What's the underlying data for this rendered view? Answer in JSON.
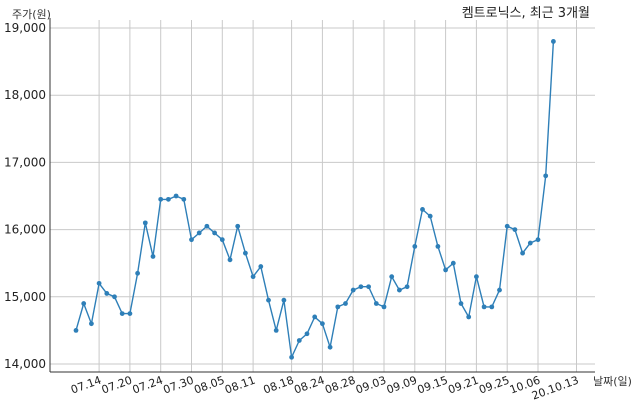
{
  "chart_data": {
    "type": "line",
    "title": "켐트로닉스, 최근 3개월",
    "ylabel": "주가(원)",
    "xlabel": "날짜(일)",
    "ylim": [
      14000,
      19000
    ],
    "yticks": [
      14000,
      15000,
      16000,
      17000,
      18000,
      19000
    ],
    "ytick_labels": [
      "14,000",
      "15,000",
      "16,000",
      "17,000",
      "18,000",
      "19,000"
    ],
    "grid": true,
    "line_color": "#2e7fb8",
    "xtick_labels": [
      "07.14",
      "07.20",
      "07.24",
      "07.30",
      "08.05",
      "08.11",
      "08.18",
      "08.24",
      "08.28",
      "09.03",
      "09.09",
      "09.15",
      "09.21",
      "09.25",
      "10.06",
      "20.10.13"
    ],
    "xtick_index": [
      3,
      7,
      11,
      15,
      19,
      23,
      28,
      32,
      36,
      40,
      44,
      48,
      52,
      56,
      60,
      65
    ],
    "series": [
      {
        "values": [
          14500,
          14900,
          14600,
          15200,
          15050,
          15000,
          14750,
          14750,
          15350,
          16100,
          15600,
          16450,
          16450,
          16500,
          16450,
          15850,
          15950,
          16050,
          15950,
          15850,
          15550,
          16050,
          15650,
          15300,
          15450,
          14950,
          14500,
          14950,
          14100,
          14350,
          14450,
          14700,
          14600,
          14250,
          14850,
          14900,
          15100,
          15150,
          15150,
          14900,
          14850,
          15300,
          15100,
          15150,
          15750,
          16300,
          16200,
          15750,
          15400,
          15500,
          14900,
          14700,
          15300,
          14850,
          14850,
          15100,
          16050,
          16000,
          15650,
          15800,
          15850,
          16800,
          18800
        ]
      }
    ]
  }
}
